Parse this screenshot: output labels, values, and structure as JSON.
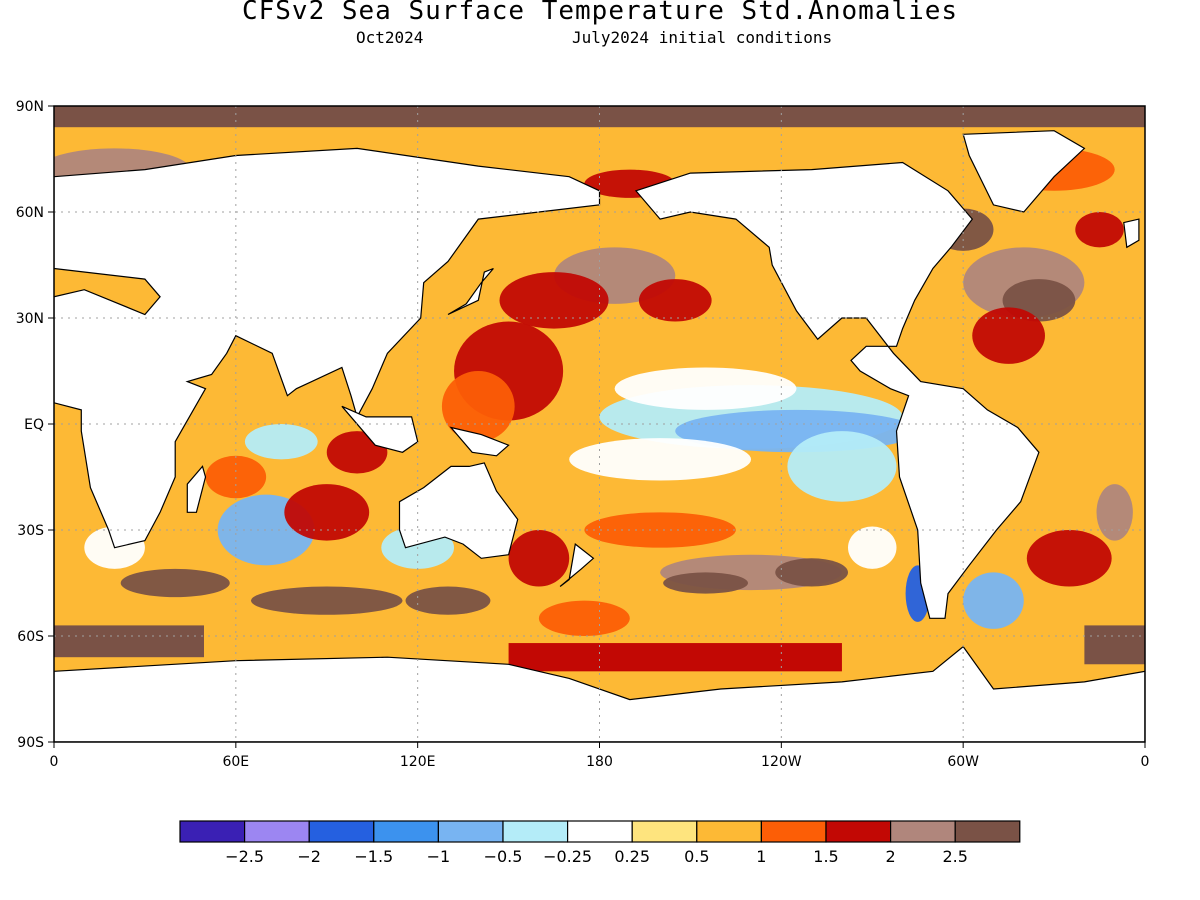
{
  "title": "CFSv2 Sea Surface Temperature Std.Anomalies",
  "subtitle_left": "Oct2024",
  "subtitle_right": "July2024 initial conditions",
  "lat_labels": [
    "90N",
    "60N",
    "30N",
    "EQ",
    "30S",
    "60S",
    "90S"
  ],
  "lon_labels": [
    "0",
    "60E",
    "120E",
    "180",
    "120W",
    "60W",
    "0"
  ],
  "colorbar": {
    "colors": [
      "#3a20b4",
      "#9c86f2",
      "#2560e0",
      "#3c92ee",
      "#78b4f2",
      "#b4ecf8",
      "#ffffff",
      "#fee47e",
      "#fdb935",
      "#fc5e06",
      "#c20804",
      "#b0867c",
      "#7a5246"
    ],
    "labels": [
      "-2.5",
      "-2",
      "-1.5",
      "-1",
      "-0.5",
      "-0.25",
      "0.25",
      "0.5",
      "1",
      "1.5",
      "2",
      "2.5"
    ]
  },
  "colors": {
    "land": "#ffffff",
    "frame": "#000000",
    "grid": "#a0a0a0"
  }
}
